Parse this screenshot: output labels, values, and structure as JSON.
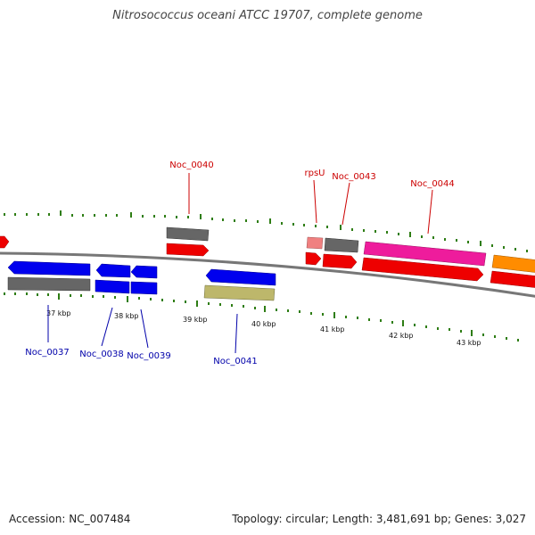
{
  "title": "Nitrosococcus oceani ATCC 19707, complete genome",
  "footer": {
    "accession": "Accession: NC_007484",
    "summary": "Topology: circular; Length: 3,481,691 bp; Genes: 3,027"
  },
  "scale_labels": [
    "37 kbp",
    "38 kbp",
    "39 kbp",
    "40 kbp",
    "41 kbp",
    "42 kbp",
    "43 kbp"
  ],
  "top_labels": [
    "Noc_0040",
    "rpsU",
    "Noc_0043",
    "Noc_0044"
  ],
  "bottom_labels": [
    "Noc_0037",
    "Noc_0038",
    "Noc_0039",
    "Noc_0041"
  ],
  "colors": {
    "backbone": "#777777",
    "tick": "#2e7d14",
    "forward_cds": "#ee0000",
    "forward_gene": "#666666",
    "reverse_cds": "#0000ee",
    "reverse_gene": "#666666",
    "pseudo": "#bdb76b",
    "rna_pink": "#ee1c9c",
    "light_red": "#f08080",
    "orange": "#ff8c00",
    "top_label": "#cc0000",
    "bottom_label": "#0000aa"
  }
}
